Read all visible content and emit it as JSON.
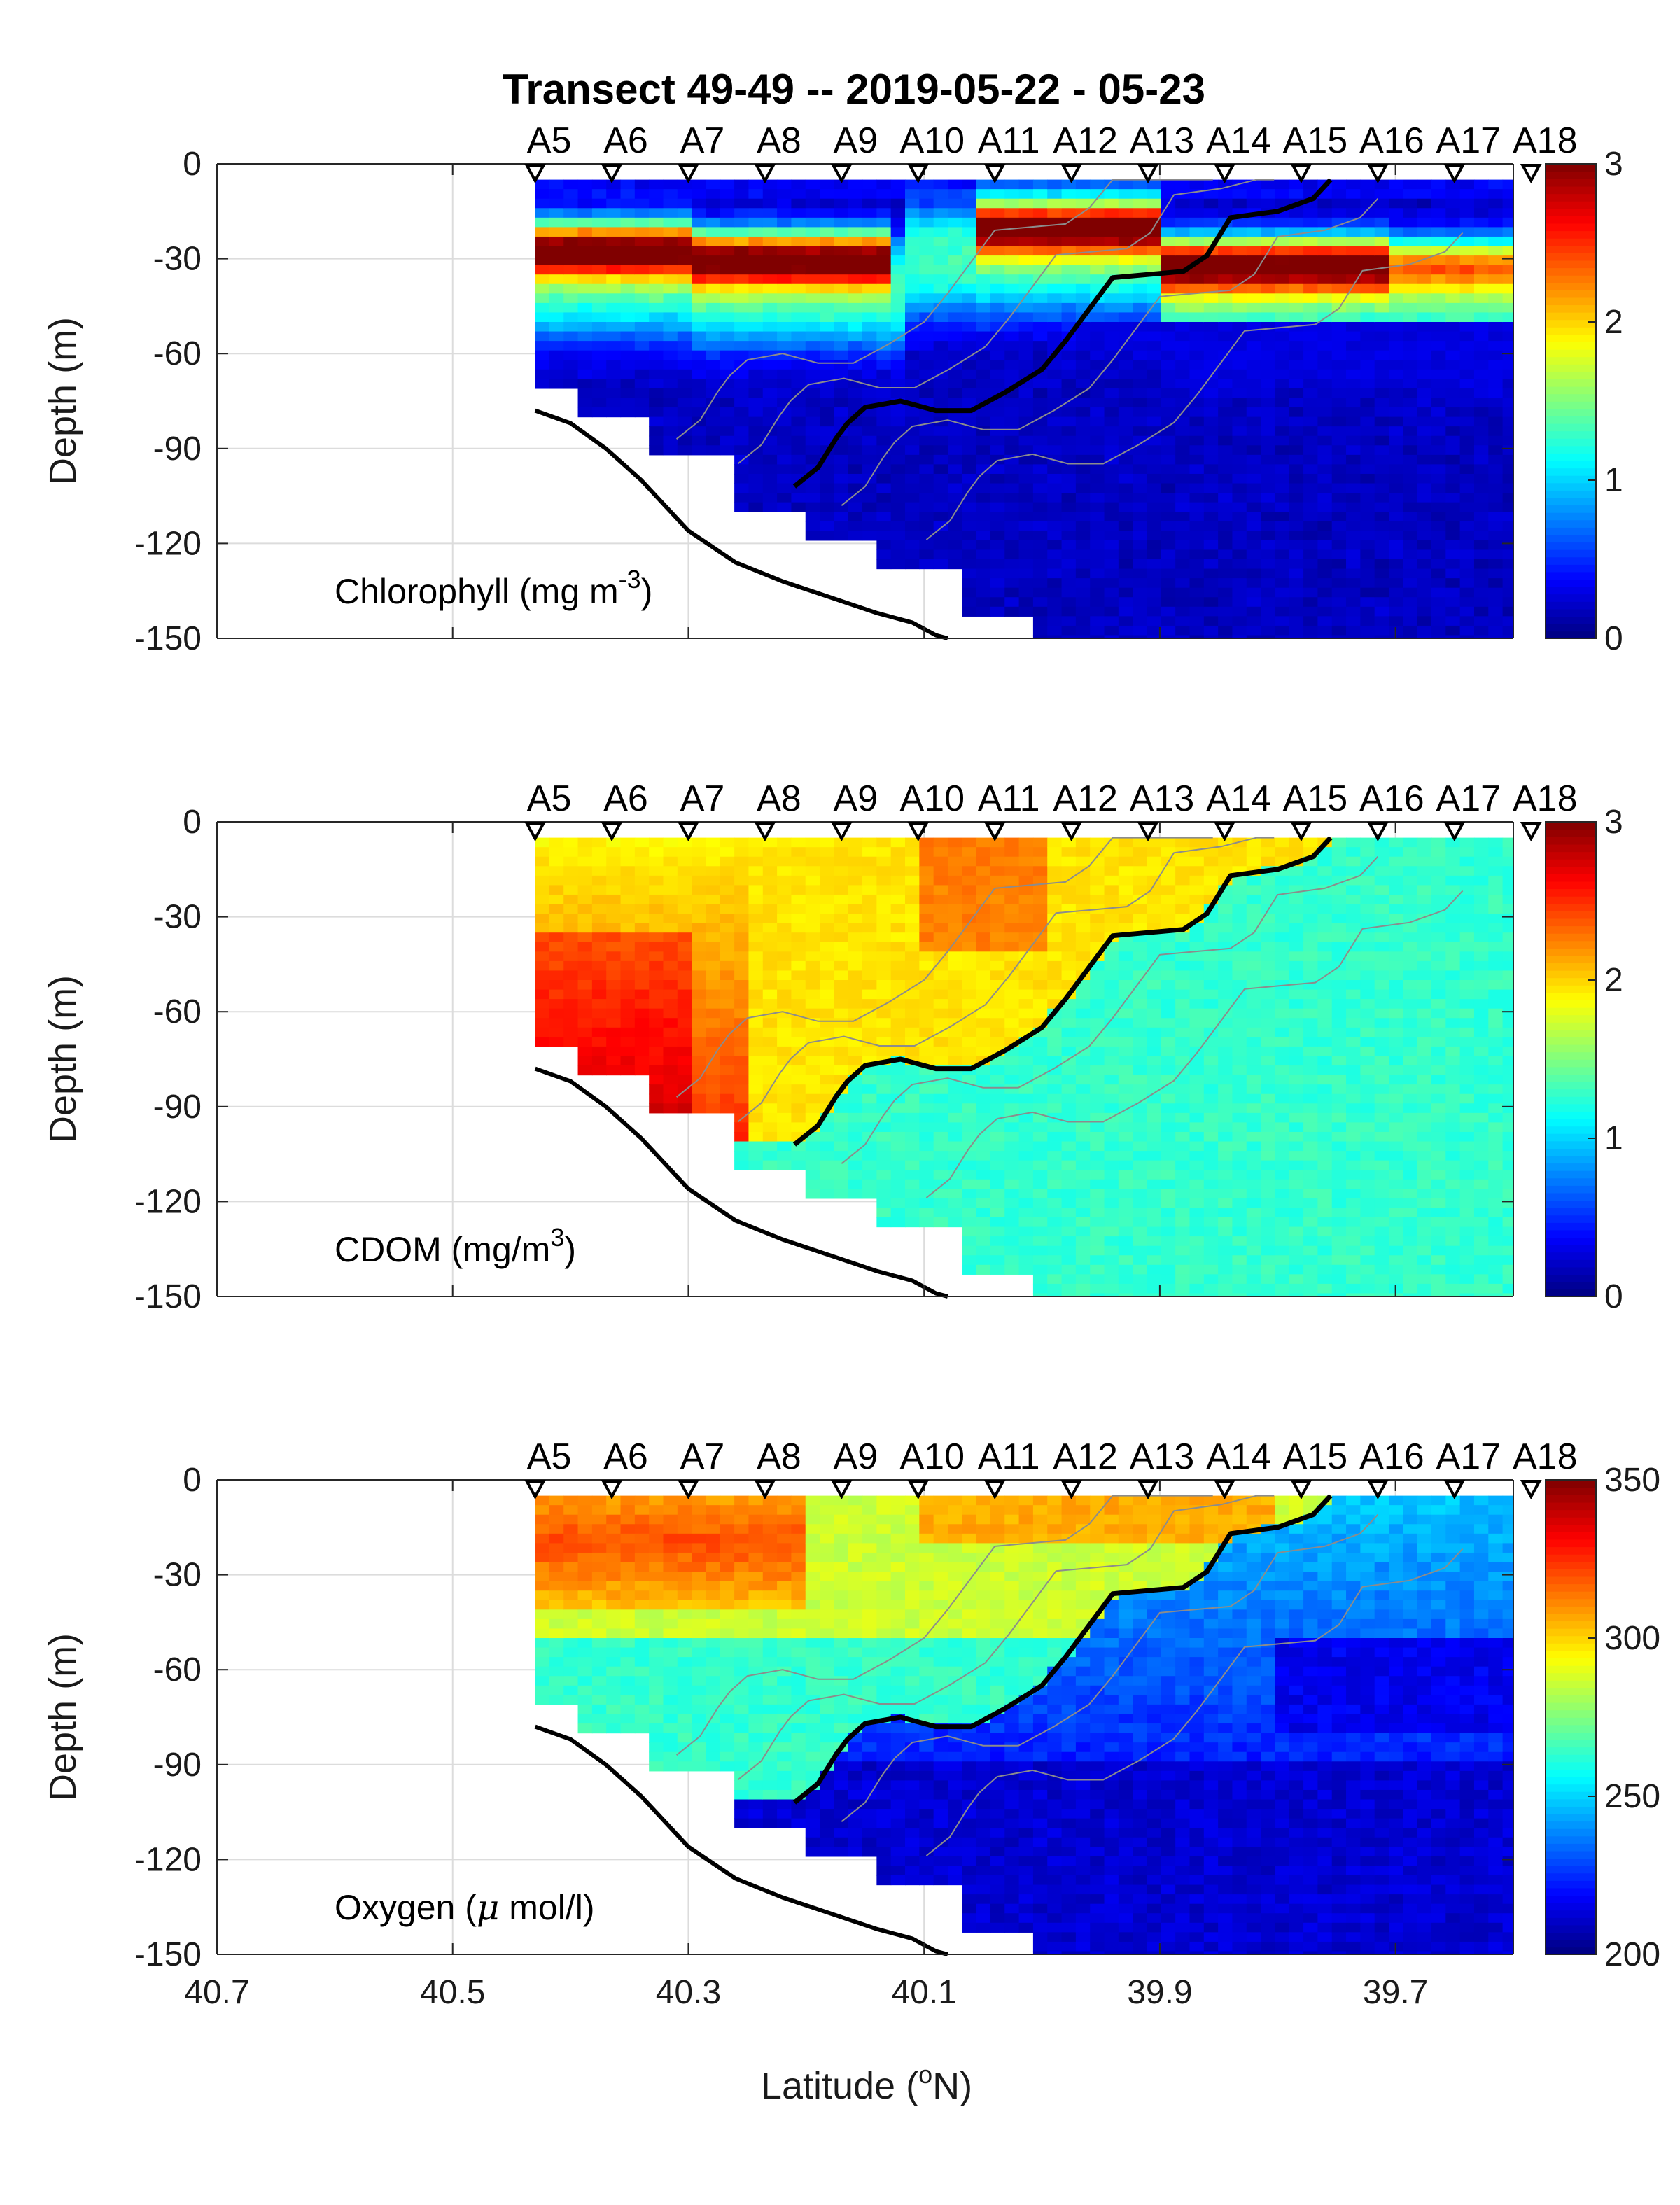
{
  "figure": {
    "title": "Transect 49-49 -- 2019-05-22 - 05-23",
    "xlabel": "Latitude (",
    "xlabel_sup": "o",
    "xlabel_end": "N)",
    "ylabel": "Depth (m)"
  },
  "colors": {
    "contour": "#8c8c8c",
    "boundary": "#000000",
    "grid": "#dcdcdc",
    "colormap": "jet"
  },
  "chart_data": [
    {
      "type": "heatmap",
      "label": "Chlorophyll (mg m",
      "label_sup": "-3",
      "label_end": ")",
      "variable": "chlorophyll",
      "xlim": [
        40.7,
        39.6
      ],
      "ylim": [
        -150,
        0
      ],
      "xticks": [
        "40.7",
        "40.5",
        "40.3",
        "40.1",
        "39.9",
        "39.7"
      ],
      "yticks": [
        "0",
        "-30",
        "-60",
        "-90",
        "-120",
        "-150"
      ],
      "clim": [
        0,
        3
      ],
      "cticks": [
        "0",
        "1",
        "2",
        "3"
      ],
      "stations": [
        "A5",
        "A6",
        "A7",
        "A8",
        "A9",
        "A10",
        "A11",
        "A12",
        "A13",
        "A14",
        "A15",
        "A16",
        "A17",
        "A18"
      ]
    },
    {
      "type": "heatmap",
      "label": "CDOM (mg/m",
      "label_sup": "3",
      "label_end": ")",
      "variable": "cdom",
      "xlim": [
        40.7,
        39.6
      ],
      "ylim": [
        -150,
        0
      ],
      "xticks": [
        "40.7",
        "40.5",
        "40.3",
        "40.1",
        "39.9",
        "39.7"
      ],
      "yticks": [
        "0",
        "-30",
        "-60",
        "-90",
        "-120",
        "-150"
      ],
      "clim": [
        0,
        3
      ],
      "cticks": [
        "0",
        "1",
        "2",
        "3"
      ],
      "stations": [
        "A5",
        "A6",
        "A7",
        "A8",
        "A9",
        "A10",
        "A11",
        "A12",
        "A13",
        "A14",
        "A15",
        "A16",
        "A17",
        "A18"
      ]
    },
    {
      "type": "heatmap",
      "label": "Oxygen (",
      "label_greek": "μ",
      "label_end": " mol/l)",
      "variable": "oxygen",
      "xlim": [
        40.7,
        39.6
      ],
      "ylim": [
        -150,
        0
      ],
      "xticks": [
        "40.7",
        "40.5",
        "40.3",
        "40.1",
        "39.9",
        "39.7"
      ],
      "yticks": [
        "0",
        "-30",
        "-60",
        "-90",
        "-120",
        "-150"
      ],
      "clim": [
        200,
        350
      ],
      "cticks": [
        "200",
        "250",
        "300",
        "350"
      ],
      "stations": [
        "A5",
        "A6",
        "A7",
        "A8",
        "A9",
        "A10",
        "A11",
        "A12",
        "A13",
        "A14",
        "A15",
        "A16",
        "A17",
        "A18"
      ]
    }
  ],
  "section": {
    "station_lat": [
      40.43,
      40.365,
      40.3,
      40.235,
      40.17,
      40.105,
      40.04,
      39.975,
      39.91,
      39.845,
      39.78,
      39.715,
      39.65,
      39.585
    ],
    "bottom_depth": [
      70,
      78,
      91,
      110,
      117,
      128,
      142,
      150,
      150,
      150,
      150,
      150,
      150,
      150
    ],
    "bathymetry_lat": [
      40.43,
      40.4,
      40.37,
      40.34,
      40.3,
      40.26,
      40.22,
      40.18,
      40.14,
      40.11,
      40.09,
      40.08
    ],
    "bathymetry_depth": [
      78,
      82,
      90,
      100,
      116,
      126,
      132,
      137,
      142,
      145,
      149,
      150
    ],
    "front_lat": [
      40.21,
      40.19,
      40.175,
      40.165,
      40.15,
      40.12,
      40.09,
      40.06,
      40.03,
      40.0,
      39.98,
      39.96,
      39.94,
      39.91,
      39.88,
      39.86,
      39.84,
      39.8,
      39.77,
      39.755
    ],
    "front_depth": [
      102,
      96,
      87,
      82,
      77,
      75,
      78,
      78,
      72,
      65,
      56,
      46,
      36,
      35,
      34,
      29,
      17,
      15,
      11,
      5
    ]
  }
}
